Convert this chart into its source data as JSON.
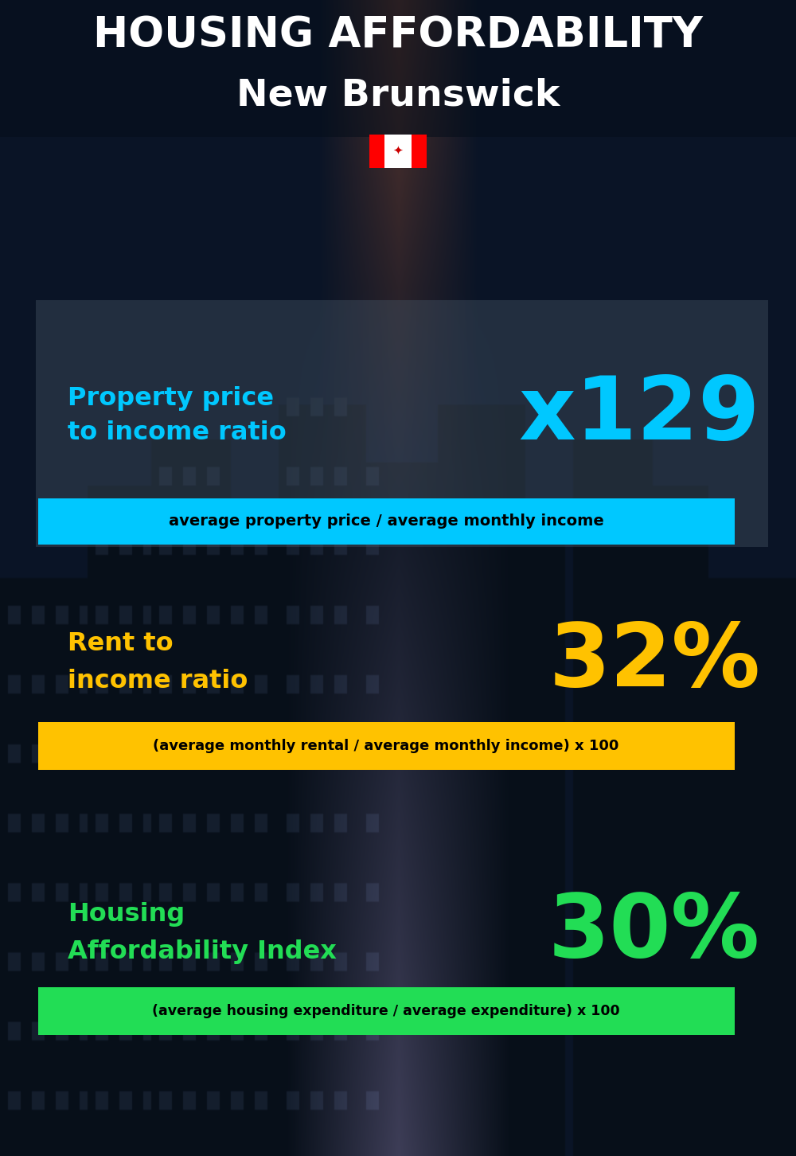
{
  "title_line1": "HOUSING AFFORDABILITY",
  "title_line2": "New Brunswick",
  "bg_color": "#0a1525",
  "section1_label": "Property price\nto income ratio",
  "section1_value": "x129",
  "section1_label_color": "#00c8ff",
  "section1_value_color": "#00c8ff",
  "section1_formula": "average property price / average monthly income",
  "section1_formula_bg": "#00c8ff",
  "section2_label": "Rent to\nincome ratio",
  "section2_value": "32%",
  "section2_label_color": "#ffc200",
  "section2_value_color": "#ffc200",
  "section2_formula": "(average monthly rental / average monthly income) x 100",
  "section2_formula_bg": "#ffc200",
  "section3_label": "Housing\nAffordability Index",
  "section3_value": "30%",
  "section3_label_color": "#22dd55",
  "section3_value_color": "#22dd55",
  "section3_formula": "(average housing expenditure / average expenditure) x 100",
  "section3_formula_bg": "#22dd55",
  "flag_white": "#ffffff",
  "flag_red": "#ff0000"
}
